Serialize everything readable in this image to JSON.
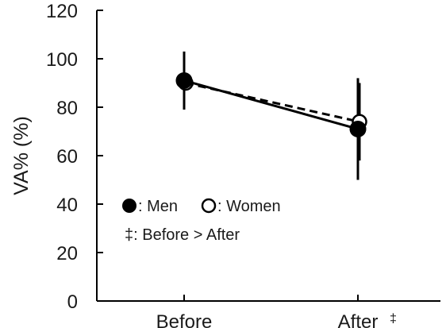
{
  "chart_data": {
    "type": "line",
    "categories": [
      "Before",
      "After"
    ],
    "xlabel": "",
    "ylabel": "VA% (%)",
    "ylim": [
      0,
      120
    ],
    "yticks": [
      0,
      20,
      40,
      60,
      80,
      100,
      120
    ],
    "grid": false,
    "series": [
      {
        "name": "Men",
        "marker": "filled-circle",
        "line_style": "solid",
        "color": "#000000",
        "values": [
          91,
          71
        ],
        "error": [
          12,
          21
        ]
      },
      {
        "name": "Women",
        "marker": "open-circle",
        "line_style": "dashed",
        "color": "#000000",
        "values": [
          90,
          74
        ],
        "error": [
          null,
          16
        ]
      }
    ],
    "significance": {
      "symbol": "‡",
      "category": "After",
      "legend_text": "Before > After"
    },
    "legend": {
      "placement": "lower-left",
      "men_label": "Men",
      "women_label": "Women",
      "separator": ":"
    }
  }
}
